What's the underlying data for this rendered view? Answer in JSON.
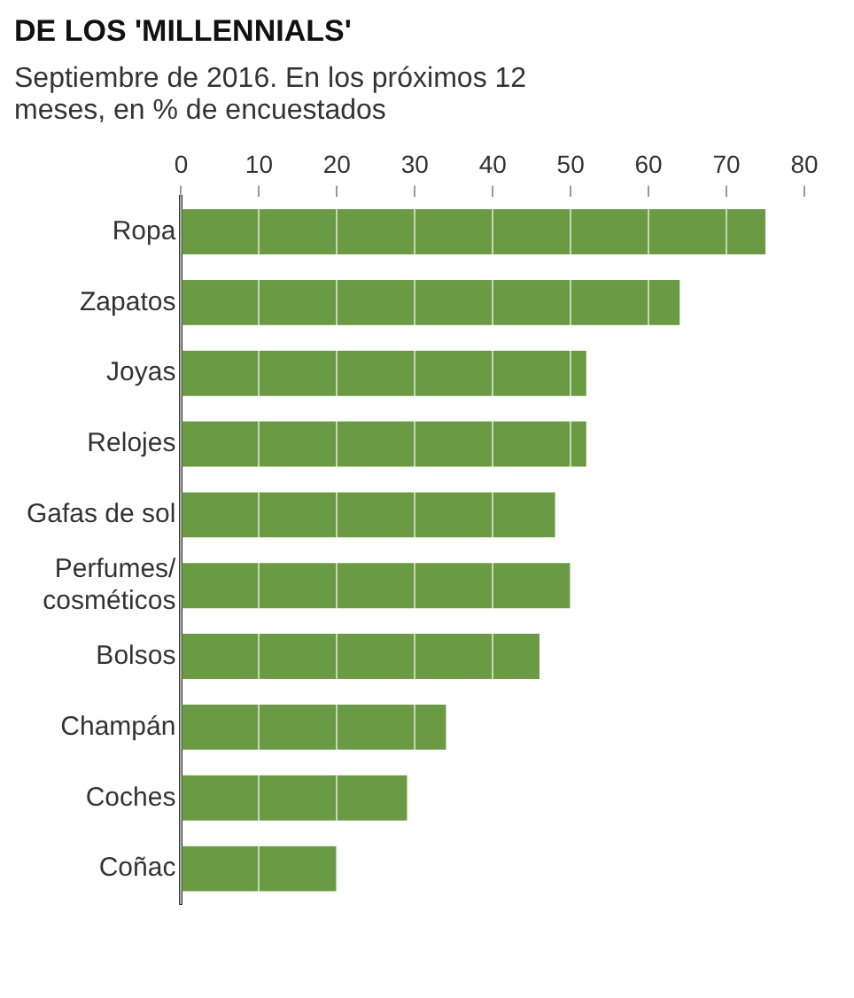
{
  "chart_data": {
    "type": "bar",
    "orientation": "horizontal",
    "title": "DE LOS 'MILLENNIALS'",
    "subtitle": "Septiembre de 2016. En los próximos 12 meses, en % de encuestados",
    "categories": [
      "Ropa",
      "Zapatos",
      "Joyas",
      "Relojes",
      "Gafas de sol",
      "Perfumes/\ncosméticos",
      "Bolsos",
      "Champán",
      "Coches",
      "Coñac"
    ],
    "values": [
      75,
      64,
      52,
      52,
      48,
      50,
      46,
      34,
      29,
      20
    ],
    "color": "#6b9a45",
    "xlim": [
      0,
      80
    ],
    "xticks": [
      0,
      10,
      20,
      30,
      40,
      50,
      60,
      70,
      80
    ],
    "grid": "x"
  }
}
